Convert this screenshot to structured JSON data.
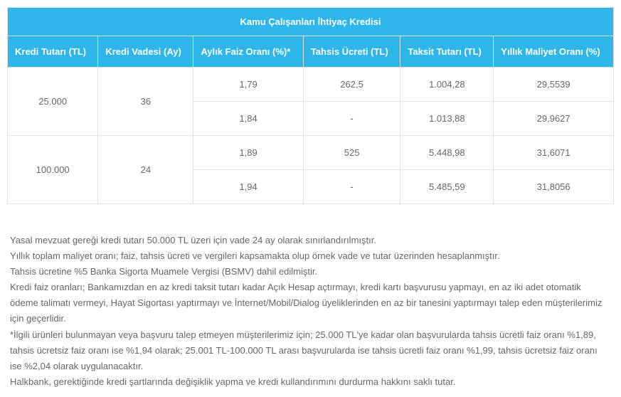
{
  "table": {
    "title": "Kamu Çalışanları İhtiyaç Kredisi",
    "headers": {
      "col1": "Kredi Tutarı (TL)",
      "col2": "Kredi Vadesi (Ay)",
      "col3": "Aylık Faiz Oranı (%)*",
      "col4": "Tahsis Ücreti (TL)",
      "col5": "Taksit Tutarı (TL)",
      "col6": "Yıllık Maliyet Oranı (%)"
    },
    "rows": {
      "g1_amount": "25.000",
      "g1_term": "36",
      "g1_r1_rate": "1,79",
      "g1_r1_fee": "262,5",
      "g1_r1_installment": "1.004,28",
      "g1_r1_annual": "29,5539",
      "g1_r2_rate": "1,84",
      "g1_r2_fee": "-",
      "g1_r2_installment": "1.013,88",
      "g1_r2_annual": "29,9627",
      "g2_amount": "100.000",
      "g2_term": "24",
      "g2_r1_rate": "1,89",
      "g2_r1_fee": "525",
      "g2_r1_installment": "5.448,98",
      "g2_r1_annual": "31,6071",
      "g2_r2_rate": "1,94",
      "g2_r2_fee": "-",
      "g2_r2_installment": "5.485,59",
      "g2_r2_annual": "31,8056"
    }
  },
  "footnotes": {
    "p1": "Yasal mevzuat gereği kredi tutarı 50.000 TL üzeri için vade 24 ay olarak sınırlandırılmıştır.",
    "p2": "Yıllık toplam maliyet oranı; faiz, tahsis ücreti ve vergileri kapsamakta olup örnek vade ve tutar üzerinden hesaplanmıştır.",
    "p3": "Tahsis ücretine %5 Banka Sigorta Muamele Vergisi (BSMV) dahil edilmiştir.",
    "p4": " Kredi faiz oranları; Bankamızdan en az kredi taksit tutarı kadar Açık Hesap açtırmayı, kredi kartı başvurusu yapmayı, en az iki adet otomatik ödeme talimatı vermeyi, Hayat Sigortası yaptırmayı ve İnternet/Mobil/Dialog üyeliklerinden en az bir tanesini yaptırmayı talep eden müşterilerimiz için geçerlidir.",
    "p5": "*İlgili ürünleri bulunmayan veya başvuru talep etmeyen müşterilerimiz için; 25.000 TL'ye kadar olan başvurularda tahsis ücretli faiz oranı %1,89, tahsis ücretsiz faiz oranı ise %1,94 olarak; 25.001 TL-100.000 TL arası başvurularda ise tahsis ücretli faiz oranı %1,99, tahsis ücretsiz faiz oranı ise %2,04 olarak uygulanacaktır.",
    "p6": "Halkbank, gerektiğinde kredi şartlarında değişiklik yapma ve kredi kullandırımını durdurma hakkını saklı tutar."
  },
  "colors": {
    "header_bg": "#2cb6e9",
    "header_text": "#ffffff",
    "border": "#e0e0e0",
    "body_text": "#666666"
  }
}
